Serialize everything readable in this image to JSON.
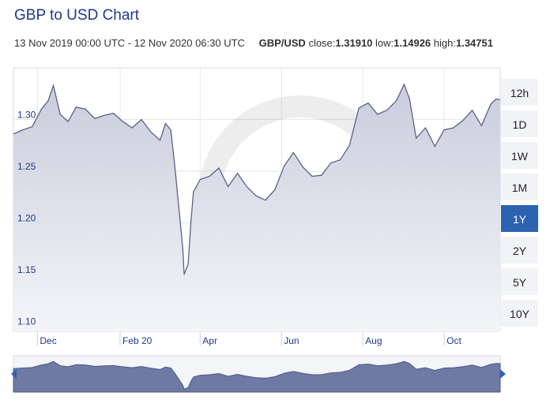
{
  "header": {
    "title": "GBP to USD Chart",
    "range": "13 Nov 2019 00:00 UTC - 12 Nov 2020 06:30 UTC",
    "pair": "GBP/USD",
    "close_label": "close:",
    "close": "1.31910",
    "low_label": "low:",
    "low": "1.14926",
    "high_label": "high:",
    "high": "1.34751"
  },
  "timeframes": [
    {
      "label": "12h",
      "active": false
    },
    {
      "label": "1D",
      "active": false
    },
    {
      "label": "1W",
      "active": false
    },
    {
      "label": "1M",
      "active": false
    },
    {
      "label": "1Y",
      "active": true
    },
    {
      "label": "2Y",
      "active": false
    },
    {
      "label": "5Y",
      "active": false
    },
    {
      "label": "10Y",
      "active": false
    }
  ],
  "chart_data": {
    "type": "area",
    "title": "GBP to USD Chart",
    "xlabel": "",
    "ylabel": "",
    "ylim": [
      1.095,
      1.35
    ],
    "xlim": [
      "2019-11-13",
      "2020-11-12"
    ],
    "yticks": [
      "1.10",
      "1.15",
      "1.20",
      "1.25",
      "1.30"
    ],
    "ytick_values": [
      1.1,
      1.15,
      1.2,
      1.25,
      1.3
    ],
    "xticks": [
      "Dec",
      "Feb 20",
      "Apr",
      "Jun",
      "Aug",
      "Oct"
    ],
    "xtick_dates": [
      "2019-12-01",
      "2020-02-01",
      "2020-04-01",
      "2020-06-01",
      "2020-08-01",
      "2020-10-01"
    ],
    "grid": true,
    "colors": {
      "line": "#5a6285",
      "fill": "#d6d8e6",
      "navigator": "#6e7aa3",
      "active": "#2b63b0"
    },
    "series": [
      {
        "x": [
          "2019-11-13",
          "2019-11-20",
          "2019-11-27",
          "2019-12-04",
          "2019-12-09",
          "2019-12-13",
          "2019-12-18",
          "2019-12-24",
          "2019-12-30",
          "2020-01-06",
          "2020-01-13",
          "2020-01-20",
          "2020-01-27",
          "2020-02-03",
          "2020-02-10",
          "2020-02-17",
          "2020-02-24",
          "2020-03-02",
          "2020-03-06",
          "2020-03-10",
          "2020-03-13",
          "2020-03-16",
          "2020-03-19",
          "2020-03-20",
          "2020-03-23",
          "2020-03-25",
          "2020-03-27",
          "2020-04-01",
          "2020-04-08",
          "2020-04-15",
          "2020-04-22",
          "2020-04-29",
          "2020-05-06",
          "2020-05-13",
          "2020-05-20",
          "2020-05-27",
          "2020-06-03",
          "2020-06-10",
          "2020-06-17",
          "2020-06-24",
          "2020-07-01",
          "2020-07-08",
          "2020-07-15",
          "2020-07-22",
          "2020-07-29",
          "2020-08-05",
          "2020-08-12",
          "2020-08-19",
          "2020-08-26",
          "2020-09-01",
          "2020-09-05",
          "2020-09-10",
          "2020-09-17",
          "2020-09-24",
          "2020-10-01",
          "2020-10-08",
          "2020-10-15",
          "2020-10-22",
          "2020-10-29",
          "2020-11-05",
          "2020-11-09",
          "2020-11-12"
        ],
        "y": [
          1.286,
          1.29,
          1.293,
          1.31,
          1.318,
          1.333,
          1.305,
          1.298,
          1.312,
          1.31,
          1.301,
          1.304,
          1.306,
          1.298,
          1.292,
          1.3,
          1.288,
          1.28,
          1.296,
          1.29,
          1.255,
          1.215,
          1.175,
          1.15,
          1.16,
          1.2,
          1.23,
          1.242,
          1.245,
          1.253,
          1.235,
          1.248,
          1.235,
          1.226,
          1.222,
          1.232,
          1.255,
          1.268,
          1.254,
          1.245,
          1.246,
          1.258,
          1.261,
          1.275,
          1.311,
          1.316,
          1.305,
          1.309,
          1.318,
          1.334,
          1.32,
          1.282,
          1.292,
          1.274,
          1.29,
          1.292,
          1.299,
          1.309,
          1.294,
          1.315,
          1.32,
          1.319
        ]
      }
    ]
  }
}
